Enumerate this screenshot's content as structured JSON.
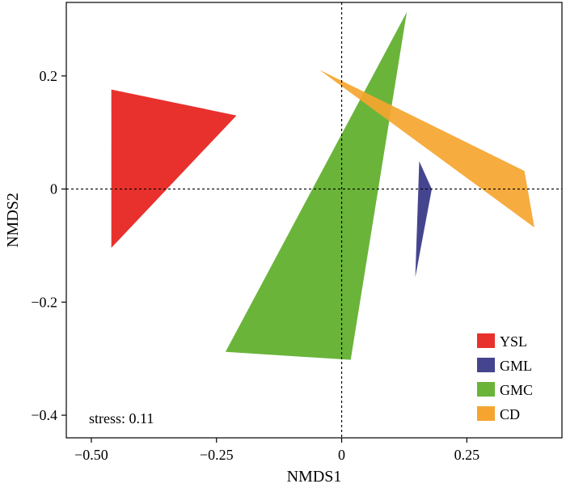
{
  "chart_data": {
    "type": "scatter",
    "subtype": "nmds-convex-hulls",
    "xlabel": "NMDS1",
    "ylabel": "NMDS2",
    "xlim": [
      -0.55,
      0.44
    ],
    "ylim": [
      -0.44,
      0.33
    ],
    "x_ticks": [
      {
        "value": -0.5,
        "label": "−0.50"
      },
      {
        "value": -0.25,
        "label": "−0.25"
      },
      {
        "value": 0,
        "label": "0"
      },
      {
        "value": 0.25,
        "label": "0.25"
      }
    ],
    "y_ticks": [
      {
        "value": 0.2,
        "label": "0.2"
      },
      {
        "value": 0,
        "label": "0"
      },
      {
        "value": -0.2,
        "label": "−0.2"
      },
      {
        "value": -0.4,
        "label": "−0.4"
      }
    ],
    "reference_lines": {
      "x": 0,
      "y": 0,
      "style": "dotted"
    },
    "annotation": "stress: 0.11",
    "legend_position": "bottom-right",
    "series": [
      {
        "name": "YSL",
        "color": "#e8312d",
        "points": [
          [
            -0.46,
            0.176
          ],
          [
            -0.21,
            0.13
          ],
          [
            -0.46,
            -0.104
          ]
        ]
      },
      {
        "name": "GML",
        "color": "#45458f",
        "points": [
          [
            0.155,
            0.049
          ],
          [
            0.18,
            0.0
          ],
          [
            0.147,
            -0.156
          ]
        ]
      },
      {
        "name": "GMC",
        "color": "#6ab43a",
        "points": [
          [
            0.13,
            0.313
          ],
          [
            0.018,
            -0.302
          ],
          [
            -0.232,
            -0.288
          ]
        ]
      },
      {
        "name": "CD",
        "color": "#f5a52f",
        "points": [
          [
            -0.045,
            0.211
          ],
          [
            0.365,
            0.032
          ],
          [
            0.385,
            -0.068
          ]
        ]
      }
    ]
  }
}
